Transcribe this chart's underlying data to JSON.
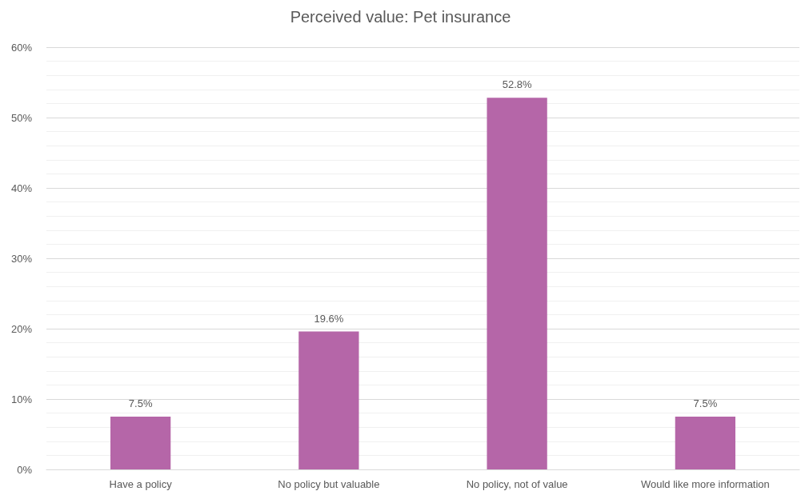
{
  "chart_data": {
    "type": "bar",
    "title": "Perceived value: Pet insurance",
    "categories": [
      "Have a policy",
      "No policy but valuable",
      "No policy, not of value",
      "Would like more information"
    ],
    "values": [
      7.5,
      19.6,
      52.8,
      7.5
    ],
    "color": "#b566a8",
    "value_labels": [
      "7.5%",
      "19.6%",
      "52.8%",
      "7.5%"
    ],
    "ylim": [
      0,
      60
    ],
    "yticks": [
      {
        "value": 0,
        "label": "0%"
      },
      {
        "value": 2,
        "label": null
      },
      {
        "value": 4,
        "label": null
      },
      {
        "value": 6,
        "label": null
      },
      {
        "value": 8,
        "label": null
      },
      {
        "value": 10,
        "label": "10%"
      },
      {
        "value": 12,
        "label": null
      },
      {
        "value": 14,
        "label": null
      },
      {
        "value": 16,
        "label": null
      },
      {
        "value": 18,
        "label": null
      },
      {
        "value": 20,
        "label": "20%"
      },
      {
        "value": 22,
        "label": null
      },
      {
        "value": 24,
        "label": null
      },
      {
        "value": 26,
        "label": null
      },
      {
        "value": 28,
        "label": null
      },
      {
        "value": 30,
        "label": "30%"
      },
      {
        "value": 32,
        "label": null
      },
      {
        "value": 34,
        "label": null
      },
      {
        "value": 36,
        "label": null
      },
      {
        "value": 38,
        "label": null
      },
      {
        "value": 40,
        "label": "40%"
      },
      {
        "value": 42,
        "label": null
      },
      {
        "value": 44,
        "label": null
      },
      {
        "value": 46,
        "label": null
      },
      {
        "value": 48,
        "label": null
      },
      {
        "value": 50,
        "label": "50%"
      },
      {
        "value": 52,
        "label": null
      },
      {
        "value": 54,
        "label": null
      },
      {
        "value": 56,
        "label": null
      },
      {
        "value": 58,
        "label": null
      },
      {
        "value": 60,
        "label": "60%"
      }
    ],
    "grid": "y"
  }
}
